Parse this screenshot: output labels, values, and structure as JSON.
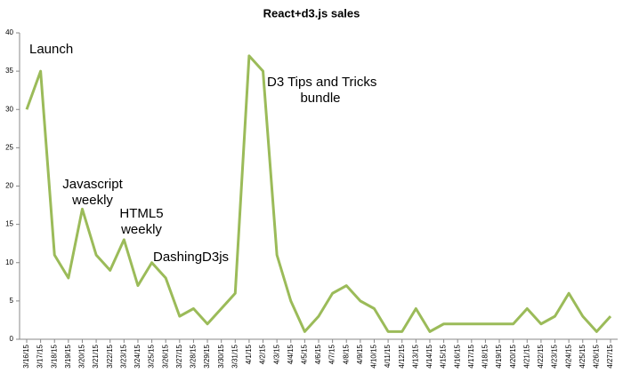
{
  "chart_data": {
    "type": "line",
    "title": "React+d3.js sales",
    "categories": [
      "3/16/15",
      "3/17/15",
      "3/18/15",
      "3/19/15",
      "3/20/15",
      "3/21/15",
      "3/22/15",
      "3/23/15",
      "3/24/15",
      "3/25/15",
      "3/26/15",
      "3/27/15",
      "3/28/15",
      "3/29/15",
      "3/30/15",
      "3/31/15",
      "4/1/15",
      "4/2/15",
      "4/3/15",
      "4/4/15",
      "4/5/15",
      "4/6/15",
      "4/7/15",
      "4/8/15",
      "4/9/15",
      "4/10/15",
      "4/11/15",
      "4/12/15",
      "4/13/15",
      "4/14/15",
      "4/15/15",
      "4/16/15",
      "4/17/15",
      "4/18/15",
      "4/19/15",
      "4/20/15",
      "4/21/15",
      "4/22/15",
      "4/23/15",
      "4/24/15",
      "4/25/15",
      "4/26/15",
      "4/27/15"
    ],
    "values": [
      30,
      35,
      11,
      8,
      17,
      11,
      9,
      13,
      7,
      10,
      8,
      3,
      4,
      2,
      4,
      6,
      37,
      35,
      11,
      5,
      1,
      3,
      6,
      7,
      5,
      4,
      1,
      1,
      4,
      1,
      2,
      2,
      2,
      2,
      2,
      2,
      4,
      2,
      3,
      6,
      3,
      1,
      3
    ],
    "color": "#9bbb59",
    "ylim": [
      0,
      40
    ],
    "yticks": [
      0,
      5,
      10,
      15,
      20,
      25,
      30,
      35,
      40
    ],
    "grid": false,
    "annotations": [
      {
        "lines": [
          "Launch"
        ]
      },
      {
        "lines": [
          "Javascript",
          "weekly"
        ]
      },
      {
        "lines": [
          "HTML5",
          "weekly"
        ]
      },
      {
        "lines": [
          "DashingD3js"
        ]
      },
      {
        "lines": [
          "D3 Tips and Tricks",
          "bundle"
        ]
      }
    ]
  }
}
